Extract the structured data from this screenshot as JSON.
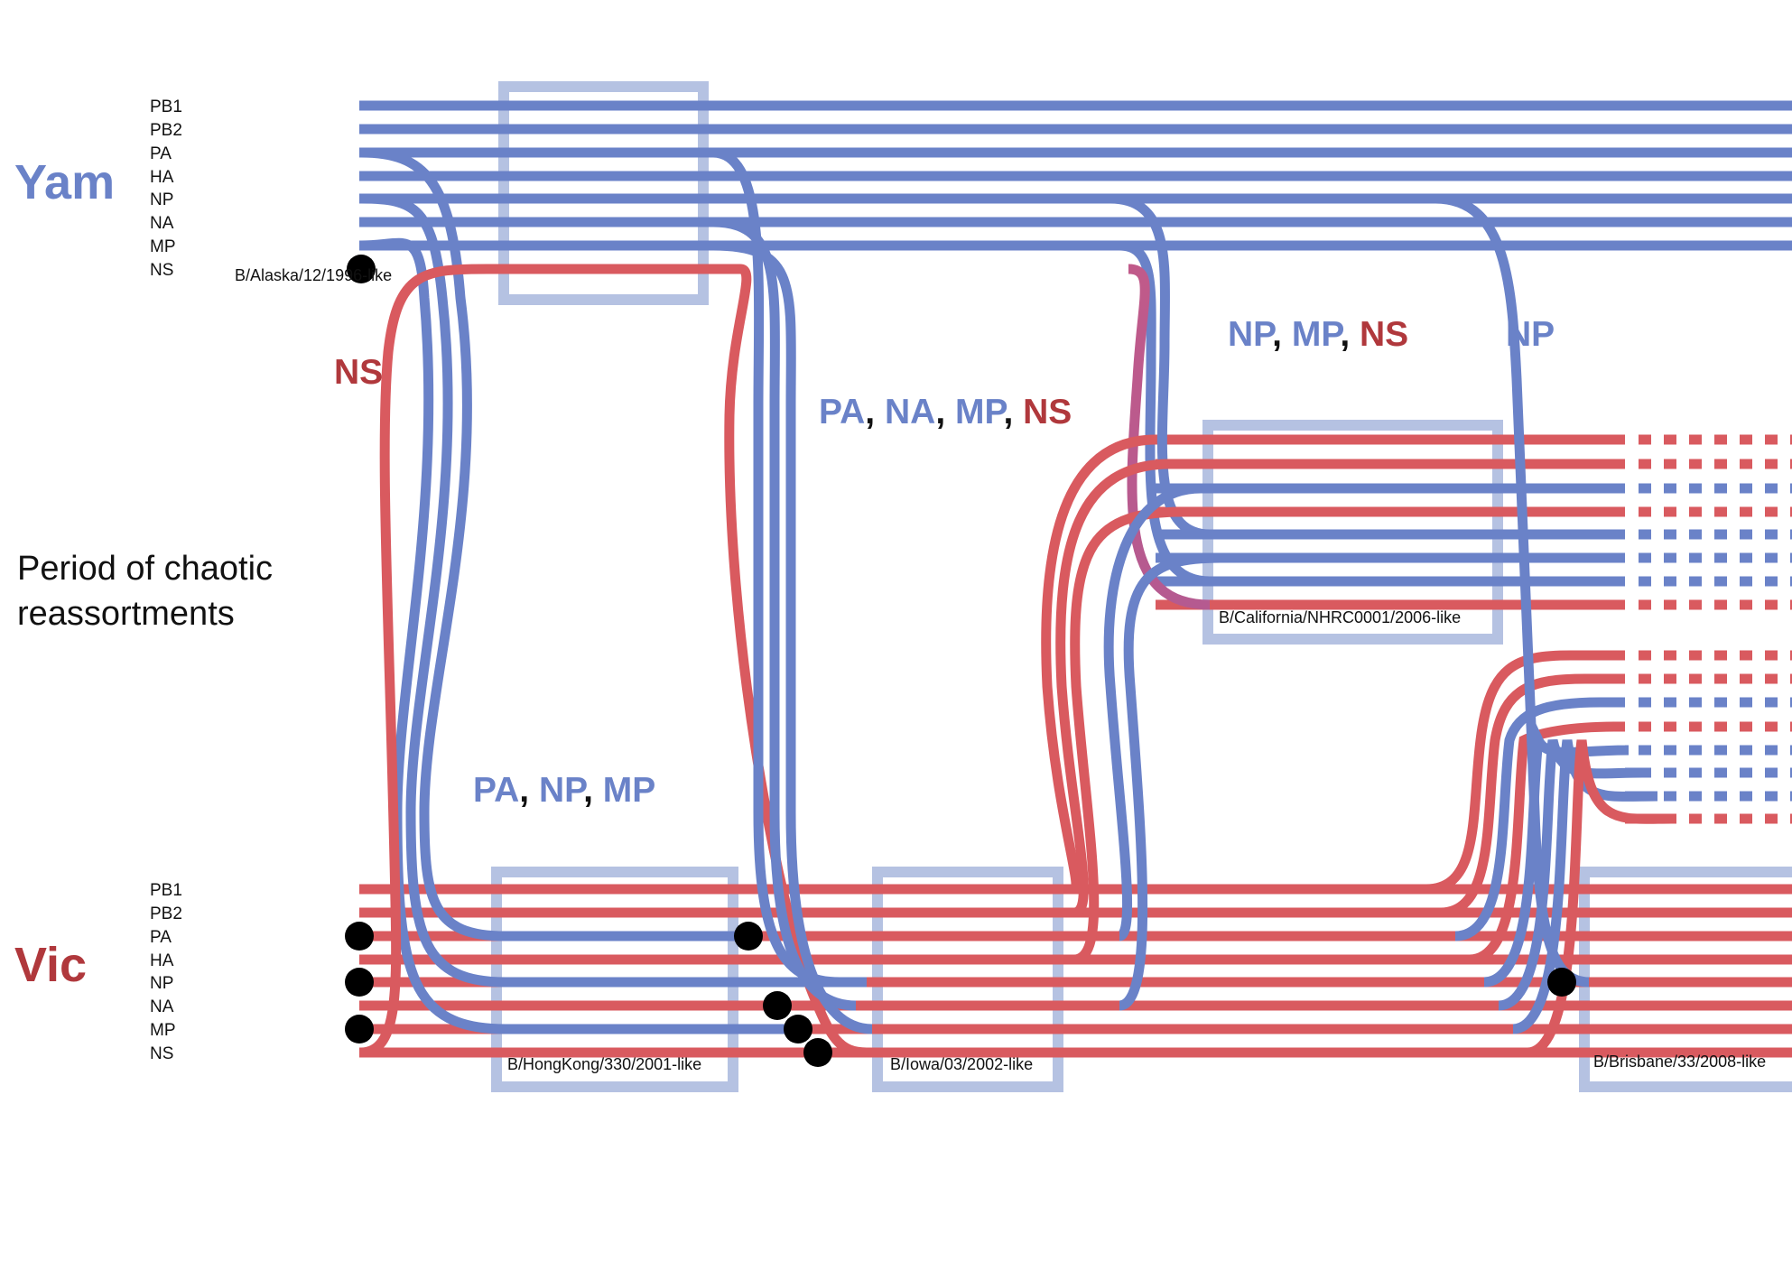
{
  "colors": {
    "yam": "#6a82c8",
    "vic": "#d95a5f",
    "vic_text": "#b0383c",
    "box_fill": "#b5c2e2",
    "marker": "#000000",
    "purple": "#9a5fc8"
  },
  "segments": [
    "PB1",
    "PB2",
    "PA",
    "HA",
    "NP",
    "NA",
    "MP",
    "NS"
  ],
  "lineages": {
    "yam": {
      "label": "Yam"
    },
    "vic": {
      "label": "Vic"
    }
  },
  "period_label": {
    "line1": "Period of chaotic",
    "line2": "reassortments"
  },
  "boxes": [
    {
      "id": "alaska",
      "label": "B/Alaska/12/1996-like"
    },
    {
      "id": "california",
      "label": "B/California/NHRC0001/2006-like"
    },
    {
      "id": "hongkong",
      "label": "B/HongKong/330/2001-like"
    },
    {
      "id": "iowa",
      "label": "B/Iowa/03/2002-like"
    },
    {
      "id": "brisbane",
      "label": "B/Brisbane/33/2008-like"
    }
  ],
  "annotations": [
    {
      "id": "ns-left",
      "parts": [
        {
          "text": "NS",
          "lineage": "vic"
        }
      ]
    },
    {
      "id": "pa-na-mp-ns",
      "parts": [
        {
          "text": "PA",
          "lineage": "yam"
        },
        {
          "text": ", ",
          "lineage": "sep"
        },
        {
          "text": "NA",
          "lineage": "yam"
        },
        {
          "text": ", ",
          "lineage": "sep"
        },
        {
          "text": "MP",
          "lineage": "yam"
        },
        {
          "text": ", ",
          "lineage": "sep"
        },
        {
          "text": "NS",
          "lineage": "vic"
        }
      ]
    },
    {
      "id": "np-mp-ns",
      "parts": [
        {
          "text": "NP",
          "lineage": "yam"
        },
        {
          "text": ", ",
          "lineage": "sep"
        },
        {
          "text": "MP",
          "lineage": "yam"
        },
        {
          "text": ", ",
          "lineage": "sep"
        },
        {
          "text": "NS",
          "lineage": "vic"
        }
      ]
    },
    {
      "id": "np-right",
      "parts": [
        {
          "text": "NP",
          "lineage": "yam"
        }
      ]
    },
    {
      "id": "pa-np-mp",
      "parts": [
        {
          "text": "PA",
          "lineage": "yam"
        },
        {
          "text": ", ",
          "lineage": "sep"
        },
        {
          "text": "NP",
          "lineage": "yam"
        },
        {
          "text": ", ",
          "lineage": "sep"
        },
        {
          "text": "MP",
          "lineage": "yam"
        }
      ]
    }
  ],
  "groups": {
    "california": [
      "vic",
      "vic",
      "yam",
      "vic",
      "yam",
      "yam",
      "yam",
      "vic"
    ],
    "brisbane": [
      "vic",
      "vic",
      "yam",
      "vic",
      "yam",
      "yam",
      "yam",
      "vic"
    ]
  }
}
